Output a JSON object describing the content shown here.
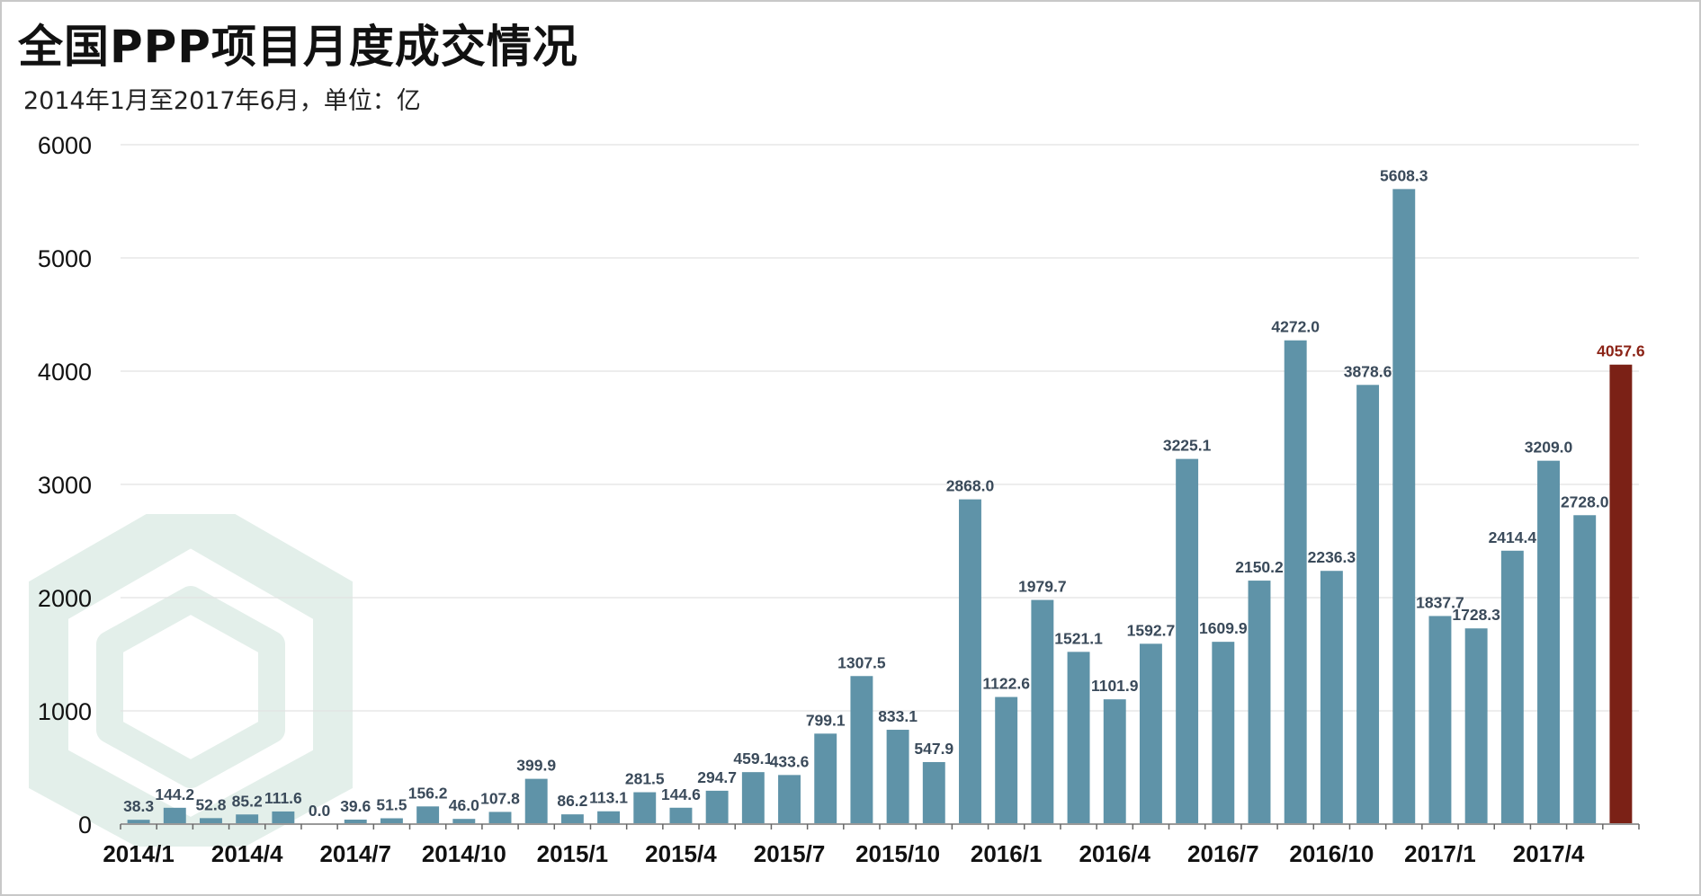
{
  "header": {
    "title": "全国PPP项目月度成交情况",
    "subtitle": "2014年1月至2017年6月，单位：亿"
  },
  "colors": {
    "bar": "#5f93a8",
    "highlight_bar": "#7b2116",
    "highlight_label": "#8b2316",
    "label": "#3a4a5a",
    "grid": "#e2e2e2",
    "axis": "#999999",
    "watermark": "#e3efea"
  },
  "chart_data": {
    "type": "bar",
    "title": "全国PPP项目月度成交情况",
    "subtitle": "2014年1月至2017年6月，单位：亿",
    "categories": [
      "2014/1",
      "2014/2",
      "2014/3",
      "2014/4",
      "2014/5",
      "2014/6",
      "2014/7",
      "2014/8",
      "2014/9",
      "2014/10",
      "2014/11",
      "2014/12",
      "2015/1",
      "2015/2",
      "2015/3",
      "2015/4",
      "2015/5",
      "2015/6",
      "2015/7",
      "2015/8",
      "2015/9",
      "2015/10",
      "2015/11",
      "2015/12",
      "2016/1",
      "2016/2",
      "2016/3",
      "2016/4",
      "2016/5",
      "2016/6",
      "2016/7",
      "2016/8",
      "2016/9",
      "2016/10",
      "2016/11",
      "2016/12",
      "2017/1",
      "2017/2",
      "2017/3",
      "2017/4",
      "2017/5",
      "2017/6"
    ],
    "values": [
      38.3,
      144.2,
      52.8,
      85.2,
      111.6,
      0.0,
      39.6,
      51.5,
      156.2,
      46.0,
      107.8,
      399.9,
      86.2,
      113.1,
      281.5,
      144.6,
      294.7,
      459.1,
      433.6,
      799.1,
      1307.5,
      833.1,
      547.9,
      2868.0,
      1122.6,
      1979.7,
      1521.1,
      1101.9,
      1592.7,
      3225.1,
      1609.9,
      2150.2,
      4272.0,
      2236.3,
      3878.6,
      5608.3,
      1837.7,
      1728.3,
      2414.4,
      3209.0,
      2728.0,
      4057.6
    ],
    "value_labels": [
      "38.3",
      "144.2",
      "52.8",
      "85.2",
      "111.6",
      "0.0",
      "39.6",
      "51.5",
      "156.2",
      "46.0",
      "107.8",
      "399.9",
      "86.2",
      "113.1",
      "281.5",
      "144.6",
      "294.7",
      "459.1",
      "433.6",
      "799.1",
      "1307.5",
      "833.1",
      "547.9",
      "2868.0",
      "1122.6",
      "1979.7",
      "1521.1",
      "1101.9",
      "1592.7",
      "3225.1",
      "1609.9",
      "2150.2",
      "4272.0",
      "2236.3",
      "3878.6",
      "5608.3",
      "1837.7",
      "1728.3",
      "2414.4",
      "3209.0",
      "2728.0",
      "4057.6"
    ],
    "highlight_index": 41,
    "x_tick_labels": [
      {
        "index": 0,
        "label": "2014/1"
      },
      {
        "index": 3,
        "label": "2014/4"
      },
      {
        "index": 6,
        "label": "2014/7"
      },
      {
        "index": 9,
        "label": "2014/10"
      },
      {
        "index": 12,
        "label": "2015/1"
      },
      {
        "index": 15,
        "label": "2015/4"
      },
      {
        "index": 18,
        "label": "2015/7"
      },
      {
        "index": 21,
        "label": "2015/10"
      },
      {
        "index": 24,
        "label": "2016/1"
      },
      {
        "index": 27,
        "label": "2016/4"
      },
      {
        "index": 30,
        "label": "2016/7"
      },
      {
        "index": 33,
        "label": "2016/10"
      },
      {
        "index": 36,
        "label": "2017/1"
      },
      {
        "index": 39,
        "label": "2017/4"
      }
    ],
    "y_ticks": [
      0,
      1000,
      2000,
      3000,
      4000,
      5000,
      6000
    ],
    "ylim": [
      0,
      6000
    ],
    "grid": true,
    "legend": "none"
  }
}
